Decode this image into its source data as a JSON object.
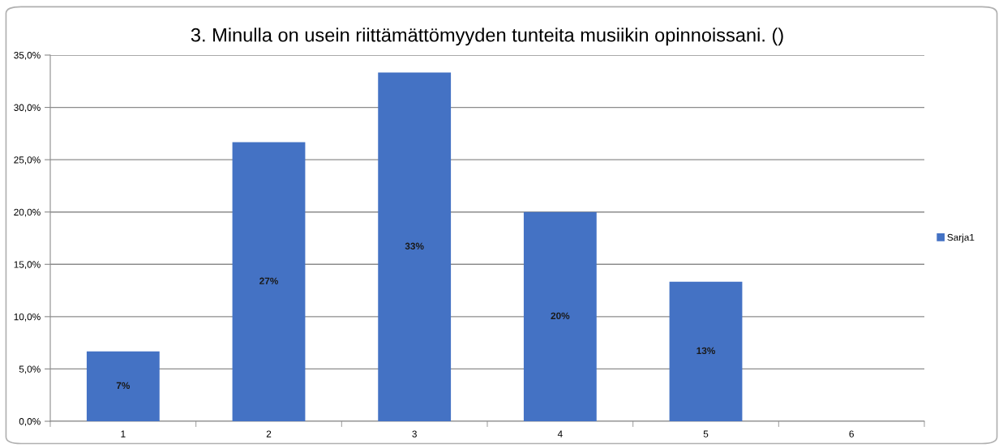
{
  "chart_data": {
    "type": "bar",
    "title": "3. Minulla on usein riittämättömyyden tunteita musiikin opinnoissani. ()",
    "categories": [
      "1",
      "2",
      "3",
      "4",
      "5",
      "6"
    ],
    "series": [
      {
        "name": "Sarja1",
        "color": "#4472c4",
        "values": [
          6.67,
          26.67,
          33.33,
          20.0,
          13.33,
          null
        ],
        "value_labels": [
          "7%",
          "27%",
          "33%",
          "20%",
          "13%",
          null
        ]
      }
    ],
    "ylim": [
      0,
      35
    ],
    "yticks": [
      {
        "value": 0,
        "label": "0,0%"
      },
      {
        "value": 5,
        "label": "5,0%"
      },
      {
        "value": 10,
        "label": "10,0%"
      },
      {
        "value": 15,
        "label": "15,0%"
      },
      {
        "value": 20,
        "label": "20,0%"
      },
      {
        "value": 25,
        "label": "25,0%"
      },
      {
        "value": 30,
        "label": "30,0%"
      },
      {
        "value": 35,
        "label": "35,0%"
      }
    ],
    "grid": "y",
    "legend": "right"
  }
}
